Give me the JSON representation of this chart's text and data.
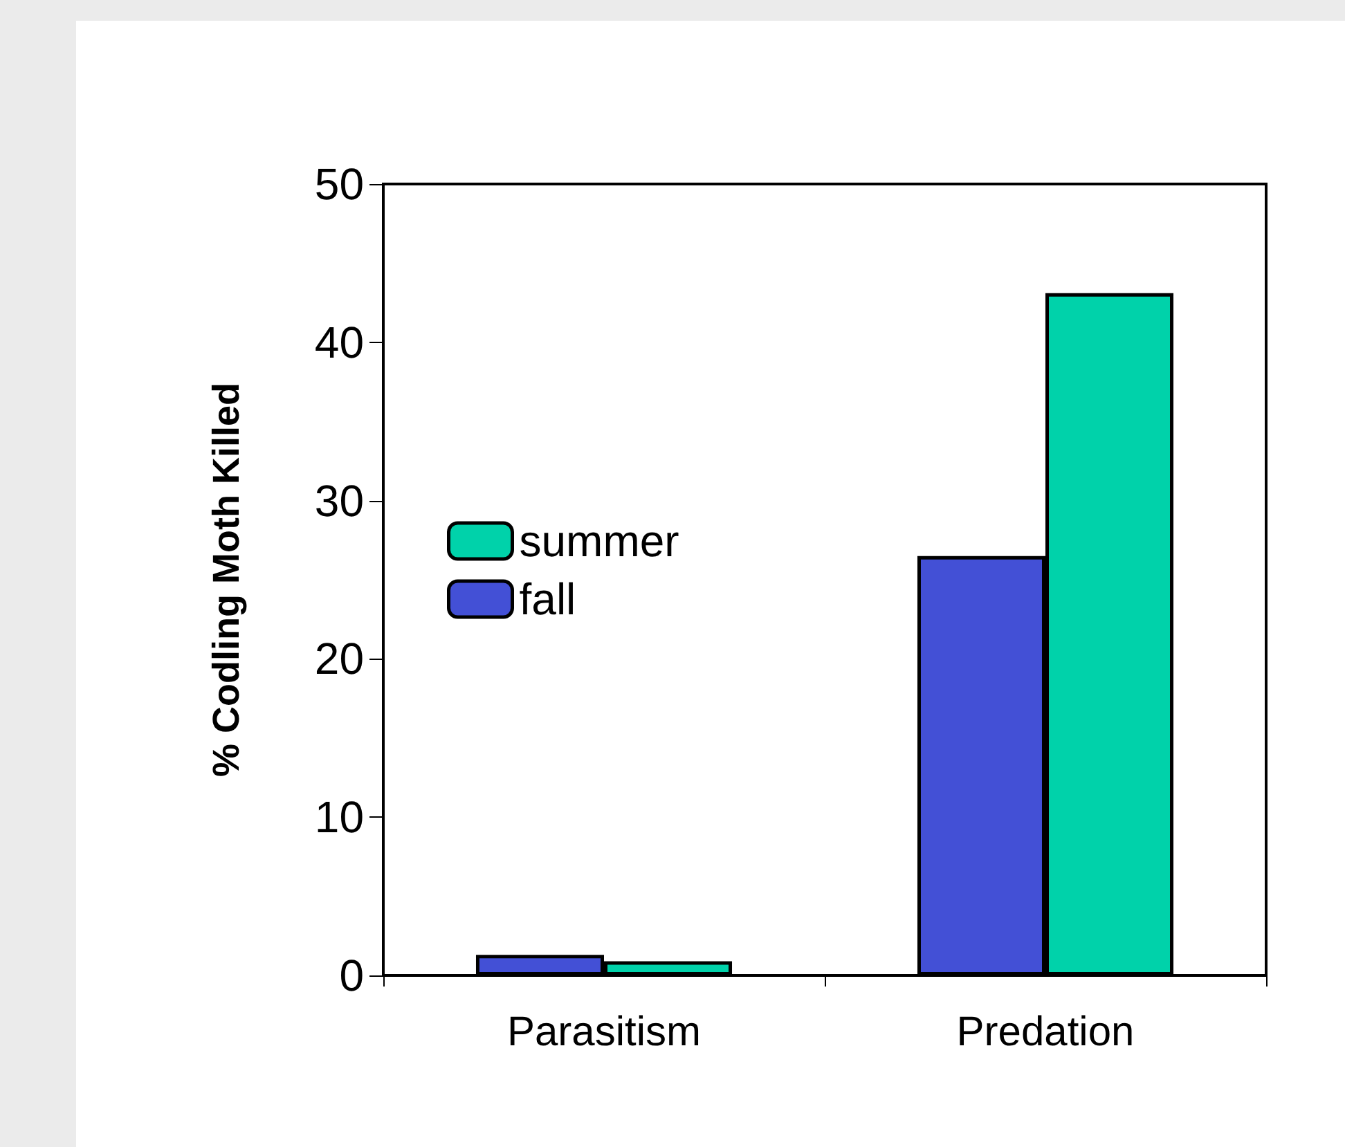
{
  "chart_data": {
    "type": "bar",
    "ylabel": "% Codling Moth Killed",
    "categories": [
      "Parasitism",
      "Predation"
    ],
    "series": [
      {
        "name": "fall",
        "color": "#4350d6",
        "values": [
          1.3,
          26.5
        ]
      },
      {
        "name": "summer",
        "color": "#00d2aa",
        "values": [
          0.9,
          43.1
        ]
      }
    ],
    "ylim": [
      0,
      50
    ],
    "yticks": [
      0,
      10,
      20,
      30,
      40,
      50
    ],
    "grid": false,
    "legend": "left"
  }
}
